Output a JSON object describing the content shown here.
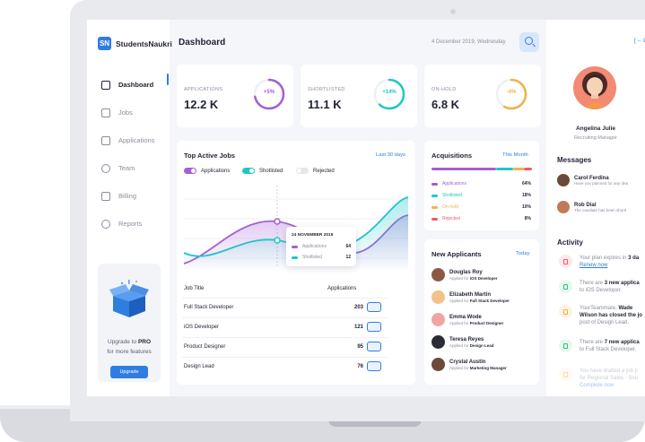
{
  "app": {
    "brand_logo": "SN",
    "brand_name": "StudentsNaukri"
  },
  "sidebar": {
    "items": [
      {
        "label": "Dashboard",
        "icon": "dashboard-icon",
        "active": true
      },
      {
        "label": "Jobs",
        "icon": "briefcase-icon"
      },
      {
        "label": "Applications",
        "icon": "document-icon"
      },
      {
        "label": "Team",
        "icon": "team-icon"
      },
      {
        "label": "Billing",
        "icon": "card-icon"
      },
      {
        "label": "Reports",
        "icon": "clock-icon"
      }
    ],
    "upgrade": {
      "line1_prefix": "Upgrade to ",
      "line1_bold": "PRO",
      "line2": "for more features",
      "button": "Upgrade"
    }
  },
  "header": {
    "title": "Dashboard",
    "date": "4 December 2019, Wednesday"
  },
  "stats": [
    {
      "label": "APPLICATIONS",
      "value": "12.2 K",
      "change": "+5%",
      "color": "#a45ed6",
      "progress": 0.72
    },
    {
      "label": "SHORTLISTED",
      "value": "11.1 K",
      "change": "+14%",
      "color": "#1fc6c9",
      "progress": 0.62
    },
    {
      "label": "ON-HOLD",
      "value": "6.8 K",
      "change": "-4%",
      "color": "#f0b24a",
      "progress": 0.58
    }
  ],
  "top_jobs": {
    "title": "Top Active Jobs",
    "link": "Last 30 days",
    "toggles": [
      {
        "label": "Applications",
        "color": "#a45ed6",
        "on": true
      },
      {
        "label": "Shotlisted",
        "color": "#1fc6c9",
        "on": true
      },
      {
        "label": "Rejected",
        "color": "#e4e6ec",
        "on": false
      }
    ],
    "tooltip": {
      "title": "24 NOVEMBER 2019",
      "rows": [
        {
          "label": "Applications",
          "value": "64",
          "color": "#a45ed6"
        },
        {
          "label": "Shotlisted",
          "value": "12",
          "color": "#1fc6c9"
        }
      ]
    },
    "columns": [
      "Job Title",
      "Applications"
    ],
    "rows": [
      {
        "job": "Full Stack Developer",
        "count": "203"
      },
      {
        "job": "iOS Developer",
        "count": "121"
      },
      {
        "job": "Product Designer",
        "count": "95"
      },
      {
        "job": "Design Lead",
        "count": "76"
      }
    ]
  },
  "acquisitions": {
    "title": "Acquisitions",
    "link": "This Month",
    "rows": [
      {
        "label": "Applications",
        "value": "64%",
        "color": "#a45ed6"
      },
      {
        "label": "Shotlisted",
        "value": "18%",
        "color": "#1fc6c9"
      },
      {
        "label": "On-hold",
        "value": "10%",
        "color": "#f0b24a"
      },
      {
        "label": "Rejected",
        "value": "8%",
        "color": "#f0576b"
      }
    ]
  },
  "new_applicants": {
    "title": "New Applicants",
    "link": "Today",
    "prefix": "Applied for ",
    "rows": [
      {
        "name": "Douglas Roy",
        "role": "iOS Developer",
        "color": "#8a5a44"
      },
      {
        "name": "Elizabeth Martin",
        "role": "Full Stack Developer",
        "color": "#f2c28a"
      },
      {
        "name": "Emma Wode",
        "role": "Product Designer",
        "color": "#f2a4a0"
      },
      {
        "name": "Teresa Reyes",
        "role": "Design Lead",
        "color": "#2b2b33"
      },
      {
        "name": "Crystal Austin",
        "role": "Marketing Manager",
        "color": "#6b4a3a"
      }
    ]
  },
  "profile": {
    "logout": "Lo",
    "name": "Angelina Julie",
    "role": "Recruiting Manager"
  },
  "messages": {
    "title": "Messages",
    "items": [
      {
        "name": "Carol Ferdina",
        "text": "Have you planned for any dea",
        "color": "#6b4a3a"
      },
      {
        "name": "Rob Dial",
        "text": "The candiate has been shortl",
        "color": "#c07a5a"
      }
    ]
  },
  "activity": {
    "title": "Activity",
    "items": [
      {
        "pre": "Your plan expires in ",
        "bold": "3 da",
        "link": "Renew now",
        "icolor": "#f0576b",
        "ibg": "#fde8eb"
      },
      {
        "pre": "There are ",
        "bold": "3 new applica",
        "post": "to iOS Developer.",
        "icolor": "#35c07a",
        "ibg": "#e6f7ee"
      },
      {
        "pre": "YourTeammate, ",
        "bold": "Wade",
        "post": "Wilson has closed the jo",
        "post2": "post of Design Lead.",
        "icolor": "#f0b24a",
        "ibg": "#fdf3e2"
      },
      {
        "pre": "There are ",
        "bold": "7 new applica",
        "post": "to Full Stack Developer.",
        "icolor": "#35c07a",
        "ibg": "#e6f7ee"
      },
      {
        "pre": "You have drafted a job p",
        "post": "for Regional Sales - Sou",
        "post2": "Complete now",
        "icolor": "#f0b24a",
        "ibg": "#fdf3e2"
      }
    ]
  }
}
